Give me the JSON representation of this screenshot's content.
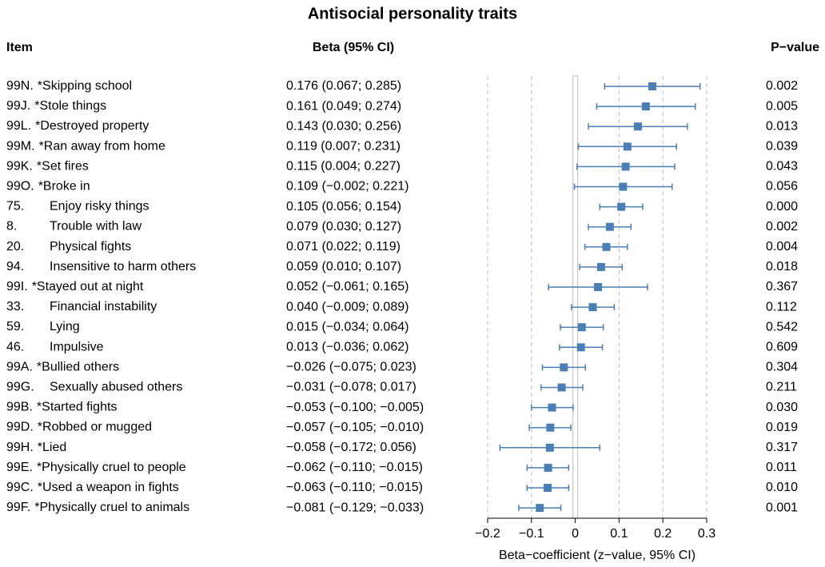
{
  "chart_data": {
    "type": "forest",
    "title": "Antisocial personality traits",
    "column_headers": {
      "item": "Item",
      "beta": "Beta (95% CI)",
      "p": "P−value"
    },
    "x_label": "Beta−coefficient (z−value, 95% CI)",
    "codes": [
      "99N.",
      "99J.",
      "99L.",
      "99M.",
      "99K.",
      "99O.",
      "75.",
      "8.",
      "20.",
      "94.",
      "99I.",
      "33.",
      "59.",
      "46.",
      "99A.",
      "99G.",
      "99B.",
      "99D.",
      "99H.",
      "99E.",
      "99C.",
      "99F."
    ],
    "names": [
      "*Skipping school",
      "*Stole things",
      "*Destroyed property",
      "*Ran away from home",
      "*Set fires",
      "*Broke in",
      "Enjoy risky things",
      "Trouble with law",
      "Physical fights",
      "Insensitive to harm others",
      "*Stayed out at night",
      "Financial instability",
      "Lying",
      "Impulsive",
      "*Bullied others",
      "Sexually abused others",
      "*Started fights",
      "*Robbed or mugged",
      "*Lied",
      "*Physically cruel to people",
      "*Used a weapon in fights",
      "*Physically cruel to animals"
    ],
    "values": [
      0.176,
      0.161,
      0.143,
      0.119,
      0.115,
      0.109,
      0.105,
      0.079,
      0.071,
      0.059,
      0.052,
      0.04,
      0.015,
      0.013,
      -0.026,
      -0.031,
      -0.053,
      -0.057,
      -0.058,
      -0.062,
      -0.063,
      -0.081
    ],
    "lower": [
      0.067,
      0.049,
      0.03,
      0.007,
      0.004,
      -0.002,
      0.056,
      0.03,
      0.022,
      0.01,
      -0.061,
      -0.009,
      -0.034,
      -0.036,
      -0.075,
      -0.078,
      -0.1,
      -0.105,
      -0.172,
      -0.11,
      -0.11,
      -0.129
    ],
    "upper": [
      0.285,
      0.274,
      0.256,
      0.231,
      0.227,
      0.221,
      0.154,
      0.127,
      0.119,
      0.107,
      0.165,
      0.089,
      0.064,
      0.062,
      0.023,
      0.017,
      -0.005,
      -0.01,
      0.056,
      -0.015,
      -0.015,
      -0.033
    ],
    "value_labels": [
      "0.176 (0.067; 0.285)",
      "0.161 (0.049; 0.274)",
      "0.143 (0.030; 0.256)",
      "0.119 (0.007; 0.231)",
      "0.115 (0.004; 0.227)",
      "0.109 (−0.002; 0.221)",
      "0.105 (0.056; 0.154)",
      "0.079 (0.030; 0.127)",
      "0.071 (0.022; 0.119)",
      "0.059 (0.010; 0.107)",
      "0.052 (−0.061; 0.165)",
      "0.040 (−0.009; 0.089)",
      "0.015 (−0.034; 0.064)",
      "0.013 (−0.036; 0.062)",
      "−0.026 (−0.075; 0.023)",
      "−0.031 (−0.078; 0.017)",
      "−0.053 (−0.100; −0.005)",
      "−0.057 (−0.105; −0.010)",
      "−0.058 (−0.172; 0.056)",
      "−0.062 (−0.110; −0.015)",
      "−0.063 (−0.110; −0.015)",
      "−0.081 (−0.129; −0.033)"
    ],
    "p_values": [
      "0.002",
      "0.005",
      "0.013",
      "0.039",
      "0.043",
      "0.056",
      "0.000",
      "0.002",
      "0.004",
      "0.018",
      "0.367",
      "0.112",
      "0.542",
      "0.609",
      "0.304",
      "0.211",
      "0.030",
      "0.019",
      "0.317",
      "0.011",
      "0.010",
      "0.001"
    ],
    "xlim": [
      -0.2,
      0.3
    ],
    "xticks": [
      {
        "value": -0.2,
        "label": "−0.2"
      },
      {
        "value": -0.1,
        "label": "−0.1"
      },
      0,
      0.1,
      0.2,
      0.3
    ],
    "color": "#4a7fb5",
    "grid": true
  }
}
